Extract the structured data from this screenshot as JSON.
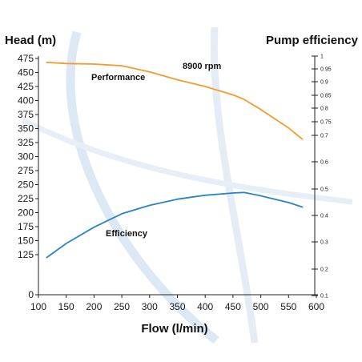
{
  "chart_data": {
    "type": "line",
    "left_axis_title": "Head (m)",
    "right_axis_title": "Pump efficiency",
    "xlabel": "Flow (l/min)",
    "annotation": "8900 rpm",
    "x_ticks": [
      "100",
      "150",
      "200",
      "250",
      "300",
      "350",
      "400",
      "450",
      "500",
      "550",
      "600"
    ],
    "left_ticks": [
      "475",
      "450",
      "425",
      "400",
      "375",
      "350",
      "325",
      "300",
      "275",
      "250",
      "225",
      "200",
      "175",
      "150",
      "125",
      "0"
    ],
    "right_ticks": [
      "1",
      "0.95",
      "0.9",
      "0.85",
      "0.8",
      "0.75",
      "0.7",
      "0.6",
      "0.5",
      "0.4",
      "0.3",
      "0.2",
      "0.1"
    ],
    "xlim": [
      100,
      600
    ],
    "series": [
      {
        "name": "Performance",
        "axis": "left",
        "color": "#f39c2c",
        "points": [
          [
            115,
            468
          ],
          [
            150,
            466
          ],
          [
            200,
            465
          ],
          [
            250,
            462
          ],
          [
            300,
            451
          ],
          [
            350,
            437
          ],
          [
            400,
            425
          ],
          [
            450,
            410
          ],
          [
            470,
            402
          ],
          [
            500,
            384
          ],
          [
            550,
            351
          ],
          [
            575,
            331
          ]
        ]
      },
      {
        "name": "Efficiency",
        "axis": "left",
        "color": "#2a84c4",
        "points": [
          [
            115,
            120
          ],
          [
            150,
            145
          ],
          [
            200,
            174
          ],
          [
            250,
            198
          ],
          [
            300,
            213
          ],
          [
            350,
            224
          ],
          [
            400,
            231
          ],
          [
            450,
            235
          ],
          [
            470,
            236
          ],
          [
            500,
            230
          ],
          [
            550,
            218
          ],
          [
            575,
            210
          ]
        ]
      }
    ]
  }
}
